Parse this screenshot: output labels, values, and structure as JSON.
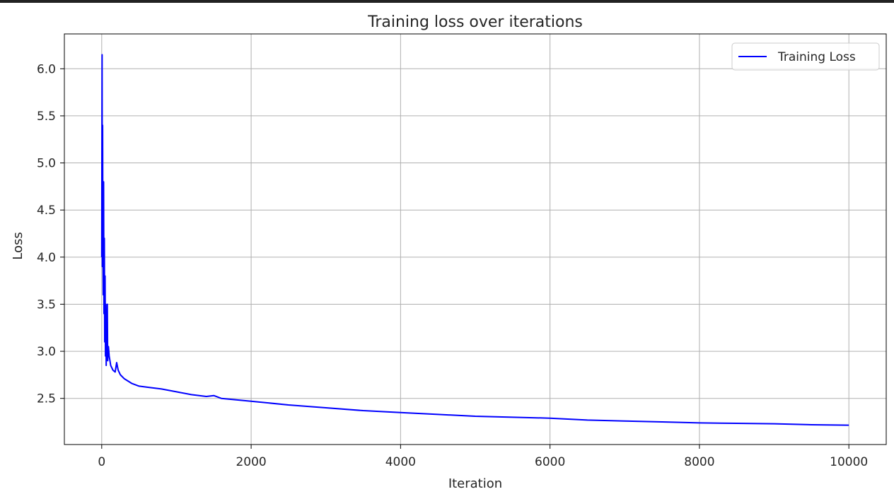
{
  "chart_data": {
    "type": "line",
    "title": "Training loss over iterations",
    "xlabel": "Iteration",
    "ylabel": "Loss",
    "xlim": [
      -500,
      10500
    ],
    "ylim": [
      2.01,
      6.37
    ],
    "xticks": [
      0,
      2000,
      4000,
      6000,
      8000,
      10000
    ],
    "yticks": [
      2.5,
      3.0,
      3.5,
      4.0,
      4.5,
      5.0,
      5.5,
      6.0
    ],
    "grid": true,
    "legend_position": "top-right",
    "series": [
      {
        "name": "Training Loss",
        "color": "#0000ff",
        "points": [
          [
            0,
            4.0
          ],
          [
            2,
            5.0
          ],
          [
            5,
            6.15
          ],
          [
            8,
            3.9
          ],
          [
            12,
            5.4
          ],
          [
            15,
            4.3
          ],
          [
            20,
            3.6
          ],
          [
            25,
            4.8
          ],
          [
            30,
            3.4
          ],
          [
            35,
            4.2
          ],
          [
            40,
            3.1
          ],
          [
            45,
            3.8
          ],
          [
            50,
            2.95
          ],
          [
            55,
            3.5
          ],
          [
            60,
            2.85
          ],
          [
            65,
            3.2
          ],
          [
            70,
            3.0
          ],
          [
            75,
            3.5
          ],
          [
            80,
            2.9
          ],
          [
            90,
            3.05
          ],
          [
            100,
            2.95
          ],
          [
            120,
            2.85
          ],
          [
            150,
            2.8
          ],
          [
            180,
            2.78
          ],
          [
            200,
            2.88
          ],
          [
            220,
            2.8
          ],
          [
            250,
            2.75
          ],
          [
            300,
            2.71
          ],
          [
            400,
            2.66
          ],
          [
            500,
            2.63
          ],
          [
            600,
            2.62
          ],
          [
            800,
            2.6
          ],
          [
            1000,
            2.57
          ],
          [
            1200,
            2.54
          ],
          [
            1400,
            2.52
          ],
          [
            1500,
            2.53
          ],
          [
            1600,
            2.5
          ],
          [
            2000,
            2.47
          ],
          [
            2500,
            2.43
          ],
          [
            3000,
            2.4
          ],
          [
            3500,
            2.37
          ],
          [
            4000,
            2.35
          ],
          [
            4500,
            2.33
          ],
          [
            5000,
            2.31
          ],
          [
            5500,
            2.3
          ],
          [
            6000,
            2.29
          ],
          [
            6500,
            2.27
          ],
          [
            7000,
            2.26
          ],
          [
            7500,
            2.25
          ],
          [
            8000,
            2.24
          ],
          [
            8500,
            2.235
          ],
          [
            9000,
            2.23
          ],
          [
            9500,
            2.22
          ],
          [
            10000,
            2.215
          ]
        ]
      }
    ]
  }
}
